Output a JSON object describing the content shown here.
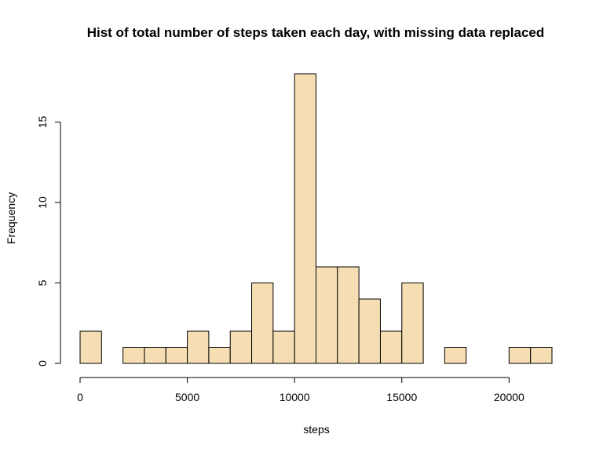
{
  "chart_data": {
    "type": "bar",
    "title": "Hist of total number of steps taken each day, with missing data replaced",
    "xlabel": "steps",
    "ylabel": "Frequency",
    "bar_fill": "#F5DEB3",
    "bar_stroke": "#000000",
    "bin_width": 1000,
    "bins": [
      {
        "start": 0,
        "end": 1000,
        "count": 2
      },
      {
        "start": 1000,
        "end": 2000,
        "count": 0
      },
      {
        "start": 2000,
        "end": 3000,
        "count": 1
      },
      {
        "start": 3000,
        "end": 4000,
        "count": 1
      },
      {
        "start": 4000,
        "end": 5000,
        "count": 1
      },
      {
        "start": 5000,
        "end": 6000,
        "count": 2
      },
      {
        "start": 6000,
        "end": 7000,
        "count": 1
      },
      {
        "start": 7000,
        "end": 8000,
        "count": 2
      },
      {
        "start": 8000,
        "end": 9000,
        "count": 5
      },
      {
        "start": 9000,
        "end": 10000,
        "count": 2
      },
      {
        "start": 10000,
        "end": 11000,
        "count": 18
      },
      {
        "start": 11000,
        "end": 12000,
        "count": 6
      },
      {
        "start": 12000,
        "end": 13000,
        "count": 6
      },
      {
        "start": 13000,
        "end": 14000,
        "count": 4
      },
      {
        "start": 14000,
        "end": 15000,
        "count": 2
      },
      {
        "start": 15000,
        "end": 16000,
        "count": 5
      },
      {
        "start": 16000,
        "end": 17000,
        "count": 0
      },
      {
        "start": 17000,
        "end": 18000,
        "count": 1
      },
      {
        "start": 18000,
        "end": 19000,
        "count": 0
      },
      {
        "start": 19000,
        "end": 20000,
        "count": 0
      },
      {
        "start": 20000,
        "end": 21000,
        "count": 1
      },
      {
        "start": 21000,
        "end": 22000,
        "count": 1
      }
    ],
    "xlim": [
      0,
      22000
    ],
    "ylim": [
      0,
      18
    ],
    "x_ticks": [
      0,
      5000,
      10000,
      15000,
      20000
    ],
    "x_tick_labels": [
      "0",
      "5000",
      "10000",
      "15000",
      "20000"
    ],
    "y_ticks": [
      0,
      5,
      10,
      15
    ],
    "y_tick_labels": [
      "0",
      "5",
      "10",
      "15"
    ],
    "grid": false,
    "legend": "none"
  }
}
